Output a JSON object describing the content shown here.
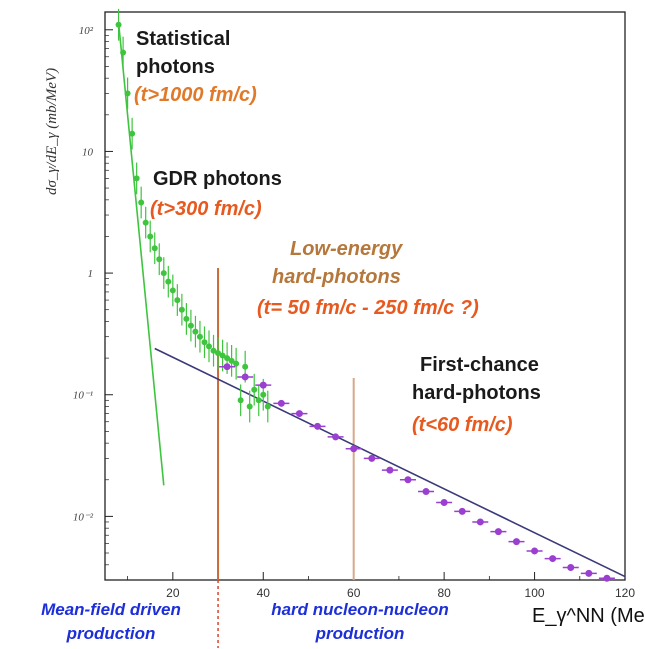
{
  "chart_data": {
    "type": "scatter",
    "xlabel": "E_γ^NN (MeV)",
    "ylabel": "dσ_γ/dE_γ (mb/MeV)",
    "xlim": [
      5,
      120
    ],
    "ylim": [
      0.003,
      140
    ],
    "yscale": "log",
    "x_ticks": [
      "20",
      "40",
      "60",
      "80",
      "100",
      "120"
    ],
    "y_ticks": [
      {
        "value": 100,
        "label": "10²"
      },
      {
        "value": 10,
        "label": "10"
      },
      {
        "value": 1,
        "label": "1"
      },
      {
        "value": 0.1,
        "label": "10⁻¹"
      },
      {
        "value": 0.01,
        "label": "10⁻²"
      }
    ],
    "grid": false,
    "series": [
      {
        "color": "#3fc43f",
        "points": [
          {
            "x": 8,
            "y": 110
          },
          {
            "x": 9,
            "y": 65
          },
          {
            "x": 10,
            "y": 30
          },
          {
            "x": 11,
            "y": 14
          },
          {
            "x": 12,
            "y": 6.0
          },
          {
            "x": 13,
            "y": 3.8
          },
          {
            "x": 14,
            "y": 2.6
          },
          {
            "x": 15,
            "y": 2.0
          },
          {
            "x": 16,
            "y": 1.6
          },
          {
            "x": 17,
            "y": 1.3
          },
          {
            "x": 18,
            "y": 1.0
          },
          {
            "x": 19,
            "y": 0.85
          },
          {
            "x": 20,
            "y": 0.72
          },
          {
            "x": 21,
            "y": 0.6
          },
          {
            "x": 22,
            "y": 0.5
          },
          {
            "x": 23,
            "y": 0.42
          },
          {
            "x": 24,
            "y": 0.37
          },
          {
            "x": 25,
            "y": 0.33
          },
          {
            "x": 26,
            "y": 0.3
          },
          {
            "x": 27,
            "y": 0.27
          },
          {
            "x": 28,
            "y": 0.25
          },
          {
            "x": 29,
            "y": 0.23
          },
          {
            "x": 30,
            "y": 0.22
          },
          {
            "x": 31,
            "y": 0.21
          },
          {
            "x": 32,
            "y": 0.2
          },
          {
            "x": 33,
            "y": 0.19
          },
          {
            "x": 34,
            "y": 0.18
          },
          {
            "x": 35,
            "y": 0.09
          },
          {
            "x": 36,
            "y": 0.17
          },
          {
            "x": 37,
            "y": 0.08
          },
          {
            "x": 38,
            "y": 0.11
          },
          {
            "x": 39,
            "y": 0.09
          },
          {
            "x": 40,
            "y": 0.1
          },
          {
            "x": 41,
            "y": 0.08
          }
        ]
      },
      {
        "color": "#9a3fd0",
        "points": [
          {
            "x": 32,
            "y": 0.17
          },
          {
            "x": 36,
            "y": 0.14
          },
          {
            "x": 40,
            "y": 0.12
          },
          {
            "x": 44,
            "y": 0.085
          },
          {
            "x": 48,
            "y": 0.07
          },
          {
            "x": 52,
            "y": 0.055
          },
          {
            "x": 56,
            "y": 0.045
          },
          {
            "x": 60,
            "y": 0.036
          },
          {
            "x": 64,
            "y": 0.03
          },
          {
            "x": 68,
            "y": 0.024
          },
          {
            "x": 72,
            "y": 0.02
          },
          {
            "x": 76,
            "y": 0.016
          },
          {
            "x": 80,
            "y": 0.013
          },
          {
            "x": 84,
            "y": 0.011
          },
          {
            "x": 88,
            "y": 0.009
          },
          {
            "x": 92,
            "y": 0.0075
          },
          {
            "x": 96,
            "y": 0.0062
          },
          {
            "x": 100,
            "y": 0.0052
          },
          {
            "x": 104,
            "y": 0.0045
          },
          {
            "x": 108,
            "y": 0.0038
          },
          {
            "x": 112,
            "y": 0.0034
          },
          {
            "x": 116,
            "y": 0.0031
          }
        ]
      }
    ],
    "fit_lines": [
      {
        "color": "#3fc43f",
        "x1": 8,
        "y1": 115,
        "x2": 18,
        "y2": 0.018
      },
      {
        "color": "#3a3a7a",
        "x1": 16,
        "y1": 0.24,
        "x2": 120,
        "y2": 0.0032
      }
    ],
    "vertical_lines": [
      {
        "x": 30,
        "color": "#c86a3a"
      },
      {
        "x": 60,
        "color": "#d8a888"
      }
    ],
    "annotations": {
      "statistical": {
        "line1": "Statistical",
        "line2": "photons",
        "time": "(t>1000 fm/c)"
      },
      "gdr": {
        "line1": "GDR photons",
        "time": "(t>300 fm/c)"
      },
      "lowenergy": {
        "line1": "Low-energy",
        "line2": "hard-photons",
        "time": "(t= 50 fm/c - 250 fm/c ?)"
      },
      "firstchance": {
        "line1": "First-chance",
        "line2": "hard-photons",
        "time": "(t<60 fm/c)"
      }
    },
    "regions": {
      "left": {
        "line1": "Mean-field driven",
        "line2": "production"
      },
      "right": {
        "line1": "hard nucleon-nucleon",
        "line2": "production"
      }
    }
  }
}
